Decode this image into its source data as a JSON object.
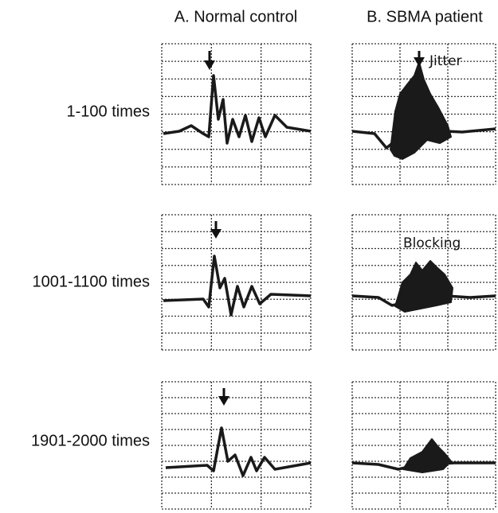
{
  "headers": [
    "A. Normal control",
    "B. SBMA patient"
  ],
  "rows": [
    "1-100 times",
    "1001-1100 times",
    "1901-2000 times"
  ],
  "annotations": {
    "jitter": "Jitter",
    "blocking": "Blocking"
  }
}
